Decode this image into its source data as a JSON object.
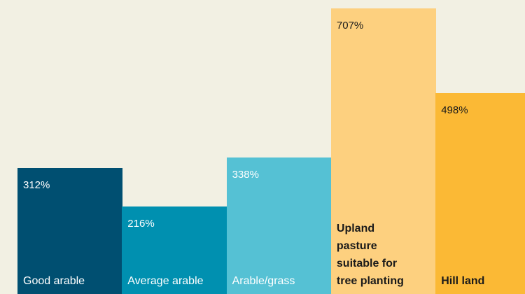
{
  "chart_data": {
    "type": "bar",
    "categories": [
      "Good arable",
      "Average arable",
      "Arable/grass",
      "Upland pasture suitable for tree planting",
      "Hill land"
    ],
    "values": [
      312,
      216,
      338,
      707,
      498
    ],
    "value_labels": [
      "312%",
      "216%",
      "338%",
      "707%",
      "498%"
    ],
    "colors": [
      "#004f71",
      "#0090b0",
      "#55c1d4",
      "#fdd07f",
      "#fbb935"
    ]
  }
}
